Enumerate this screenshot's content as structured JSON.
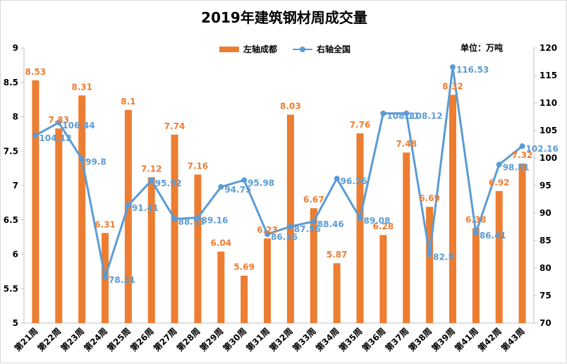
{
  "title": "2019年建筑钢材周成交量",
  "unit": "单位：万吨",
  "colors": {
    "bar": "#ED7D31",
    "line": "#5B9BD5"
  },
  "chart_data": {
    "type": "bar",
    "title": "2019年建筑钢材周成交量",
    "categories": [
      "第21周",
      "第22周",
      "第23周",
      "第24周",
      "第25周",
      "第26周",
      "第27周",
      "第28周",
      "第29周",
      "第30周",
      "第31周",
      "第32周",
      "第33周",
      "第34周",
      "第35周",
      "第36周",
      "第37周",
      "第38周",
      "第39周",
      "第41周",
      "第42周",
      "第43周"
    ],
    "series": [
      {
        "name": "左轴成都",
        "type": "bar",
        "axis": "left",
        "values": [
          8.53,
          7.83,
          8.31,
          6.31,
          8.1,
          7.12,
          7.74,
          7.16,
          6.04,
          5.69,
          6.23,
          8.03,
          6.67,
          5.87,
          7.76,
          6.28,
          7.48,
          6.69,
          8.32,
          6.38,
          6.92,
          7.32
        ]
      },
      {
        "name": "右轴全国",
        "type": "line",
        "axis": "right",
        "values": [
          104.12,
          106.44,
          99.8,
          78.31,
          91.41,
          95.92,
          88.93,
          89.16,
          94.75,
          95.98,
          86.16,
          87.56,
          88.46,
          96.26,
          89.08,
          108.11,
          108.12,
          82.5,
          116.53,
          86.41,
          98.81,
          102.16
        ]
      }
    ],
    "left_axis": {
      "min": 5,
      "max": 9,
      "ticks": [
        "5",
        "5.5",
        "6",
        "6.5",
        "7",
        "7.5",
        "8",
        "8.5",
        "9"
      ]
    },
    "right_axis": {
      "min": 70,
      "max": 120,
      "ticks": [
        "70",
        "75",
        "80",
        "85",
        "90",
        "95",
        "100",
        "105",
        "110",
        "115",
        "120"
      ]
    },
    "grid": false,
    "legend_position": "top-center"
  }
}
